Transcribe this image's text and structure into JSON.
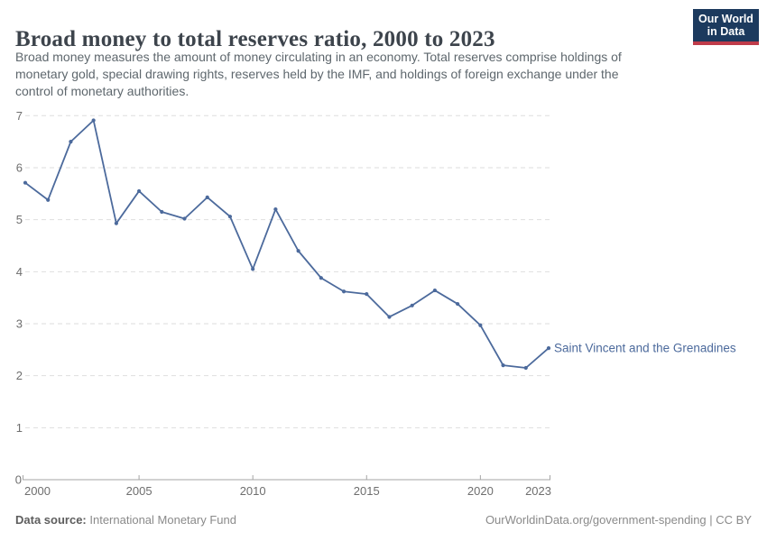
{
  "header": {
    "title": "Broad money to total reserves ratio, 2000 to 2023",
    "subtitle_lines": [
      "Broad money measures the amount of money circulating in an economy. Total reserves comprise holdings of",
      "monetary gold, special drawing rights, reserves held by the IMF, and holdings of foreign exchange under the",
      "control of monetary authorities."
    ],
    "logo": {
      "line1": "Our World",
      "line2": "in Data"
    }
  },
  "chart_data": {
    "type": "line",
    "title": "Broad money to total reserves ratio, 2000 to 2023",
    "x": [
      2000,
      2001,
      2002,
      2003,
      2004,
      2005,
      2006,
      2007,
      2008,
      2009,
      2010,
      2011,
      2012,
      2013,
      2014,
      2015,
      2016,
      2017,
      2018,
      2019,
      2020,
      2021,
      2022,
      2023
    ],
    "series": [
      {
        "name": "Saint Vincent and the Grenadines",
        "color": "#4c6a9c",
        "values": [
          5.71,
          5.38,
          6.5,
          6.91,
          4.93,
          5.55,
          5.15,
          5.02,
          5.43,
          5.06,
          4.05,
          5.2,
          4.4,
          3.88,
          3.62,
          3.57,
          3.13,
          3.35,
          3.64,
          3.38,
          2.97,
          2.2,
          2.15,
          2.53
        ]
      }
    ],
    "xlabel": "",
    "ylabel": "",
    "xlim": [
      2000,
      2023
    ],
    "ylim": [
      0,
      7
    ],
    "x_tick_labels": [
      "2000",
      "2005",
      "2010",
      "2015",
      "2020",
      "2023"
    ],
    "x_tick_years": [
      2000,
      2005,
      2010,
      2015,
      2020,
      2023
    ],
    "y_ticks": [
      0,
      1,
      2,
      3,
      4,
      5,
      6,
      7
    ],
    "grid": "horizontal-dashed",
    "legend_position": "end-of-line-label"
  },
  "colors": {
    "line": "#4c6a9c",
    "gridline": "#dedede",
    "axis": "#a5a5a5",
    "tick_label": "#6e6e6e",
    "entity_label": "#4c6a9c"
  },
  "footer": {
    "datasource_label": "Data source:",
    "datasource_value": " International Monetary Fund",
    "license": "OurWorldinData.org/government-spending | CC BY"
  }
}
